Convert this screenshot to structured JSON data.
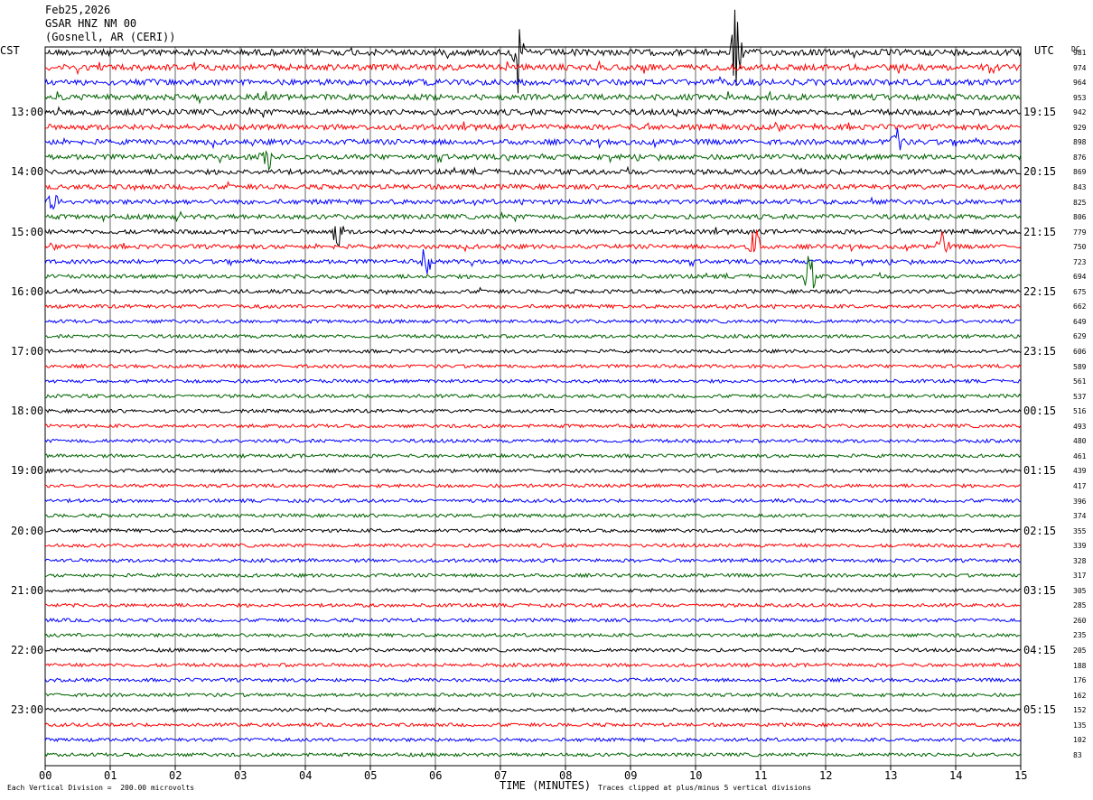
{
  "header": {
    "date": "Feb25,2026",
    "station": "GSAR HNZ NM 00",
    "location": "(Gosnell, AR (CERI))"
  },
  "left_zone": "CST",
  "right_zone": "UTC",
  "dc_label": "DC",
  "footer": {
    "left": "Each Vertical Division =  200.00 microvolts",
    "center": "TIME (MINUTES)",
    "right": "Traces clipped at plus/minus 5 vertical divisions"
  },
  "colors": [
    "#000000",
    "#ff0000",
    "#0000ff",
    "#006400"
  ],
  "chart_data": {
    "type": "line",
    "title": "",
    "xlabel": "TIME (MINUTES)",
    "xlim": [
      0,
      15
    ],
    "x_ticks": [
      "00",
      "01",
      "02",
      "03",
      "04",
      "05",
      "06",
      "07",
      "08",
      "09",
      "10",
      "11",
      "12",
      "13",
      "14",
      "15"
    ],
    "left_hour_labels": [
      "13:00",
      "14:00",
      "15:00",
      "16:00",
      "17:00",
      "18:00",
      "19:00",
      "20:00",
      "21:00",
      "22:00",
      "23:00"
    ],
    "right_hour_labels": [
      "19:15",
      "20:15",
      "21:15",
      "22:15",
      "23:15",
      "00:15",
      "01:15",
      "02:15",
      "03:15",
      "04:15",
      "05:15"
    ],
    "dc_values": [
      "981",
      "974",
      "964",
      "953",
      "942",
      "929",
      "898",
      "876",
      "869",
      "843",
      "825",
      "806",
      "779",
      "750",
      "723",
      "694",
      "675",
      "662",
      "649",
      "629",
      "606",
      "589",
      "561",
      "537",
      "516",
      "493",
      "480",
      "461",
      "439",
      "417",
      "396",
      "374",
      "355",
      "339",
      "328",
      "317",
      "305",
      "285",
      "260",
      "235",
      "205",
      "188",
      "176",
      "162",
      "152",
      "135",
      "102",
      "83"
    ],
    "events": [
      {
        "trace": 0,
        "minute": 10.62,
        "amplitude": 5
      },
      {
        "trace": 0,
        "minute": 7.28,
        "amplitude": 3
      },
      {
        "trace": 6,
        "minute": 13.1,
        "amplitude": 2
      },
      {
        "trace": 7,
        "minute": 3.4,
        "amplitude": 2
      },
      {
        "trace": 10,
        "minute": 0.15,
        "amplitude": 2
      },
      {
        "trace": 12,
        "minute": 4.5,
        "amplitude": 2
      },
      {
        "trace": 13,
        "minute": 10.9,
        "amplitude": 3
      },
      {
        "trace": 13,
        "minute": 13.8,
        "amplitude": 2
      },
      {
        "trace": 14,
        "minute": 5.85,
        "amplitude": 2
      },
      {
        "trace": 15,
        "minute": 11.75,
        "amplitude": 3
      }
    ]
  }
}
